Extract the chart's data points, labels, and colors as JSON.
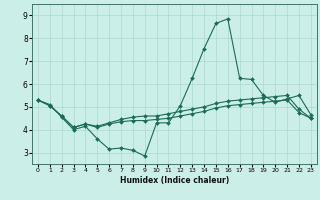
{
  "xlabel": "Humidex (Indice chaleur)",
  "bg_color": "#cceee8",
  "grid_color": "#aad8d2",
  "line_color": "#1a6b5a",
  "xlim": [
    -0.5,
    23.5
  ],
  "ylim": [
    2.5,
    9.5
  ],
  "xticks": [
    0,
    1,
    2,
    3,
    4,
    5,
    6,
    7,
    8,
    9,
    10,
    11,
    12,
    13,
    14,
    15,
    16,
    17,
    18,
    19,
    20,
    21,
    22,
    23
  ],
  "yticks": [
    3,
    4,
    5,
    6,
    7,
    8,
    9
  ],
  "line1_x": [
    0,
    1,
    2,
    3,
    4,
    5,
    6,
    7,
    8,
    9,
    10,
    11,
    12,
    13,
    14,
    15,
    16,
    17,
    18,
    19,
    20,
    21,
    22,
    23
  ],
  "line1_y": [
    5.3,
    5.1,
    4.55,
    4.0,
    4.15,
    3.6,
    3.15,
    3.2,
    3.1,
    2.85,
    4.3,
    4.3,
    5.05,
    6.25,
    7.55,
    8.65,
    8.85,
    6.25,
    6.2,
    5.5,
    5.2,
    5.35,
    5.5,
    4.65
  ],
  "line2_x": [
    0,
    1,
    2,
    3,
    4,
    5,
    6,
    7,
    8,
    9,
    10,
    11,
    12,
    13,
    14,
    15,
    16,
    17,
    18,
    19,
    20,
    21,
    22,
    23
  ],
  "line2_y": [
    5.3,
    5.05,
    4.6,
    4.1,
    4.25,
    4.1,
    4.25,
    4.35,
    4.4,
    4.4,
    4.45,
    4.5,
    4.6,
    4.7,
    4.8,
    4.95,
    5.05,
    5.1,
    5.15,
    5.2,
    5.25,
    5.3,
    4.75,
    4.5
  ],
  "line3_x": [
    0,
    1,
    2,
    3,
    4,
    5,
    6,
    7,
    8,
    9,
    10,
    11,
    12,
    13,
    14,
    15,
    16,
    17,
    18,
    19,
    20,
    21,
    22,
    23
  ],
  "line3_y": [
    5.3,
    5.05,
    4.6,
    4.1,
    4.25,
    4.15,
    4.3,
    4.45,
    4.55,
    4.6,
    4.6,
    4.7,
    4.8,
    4.9,
    5.0,
    5.15,
    5.25,
    5.3,
    5.35,
    5.4,
    5.45,
    5.5,
    4.9,
    4.5
  ]
}
